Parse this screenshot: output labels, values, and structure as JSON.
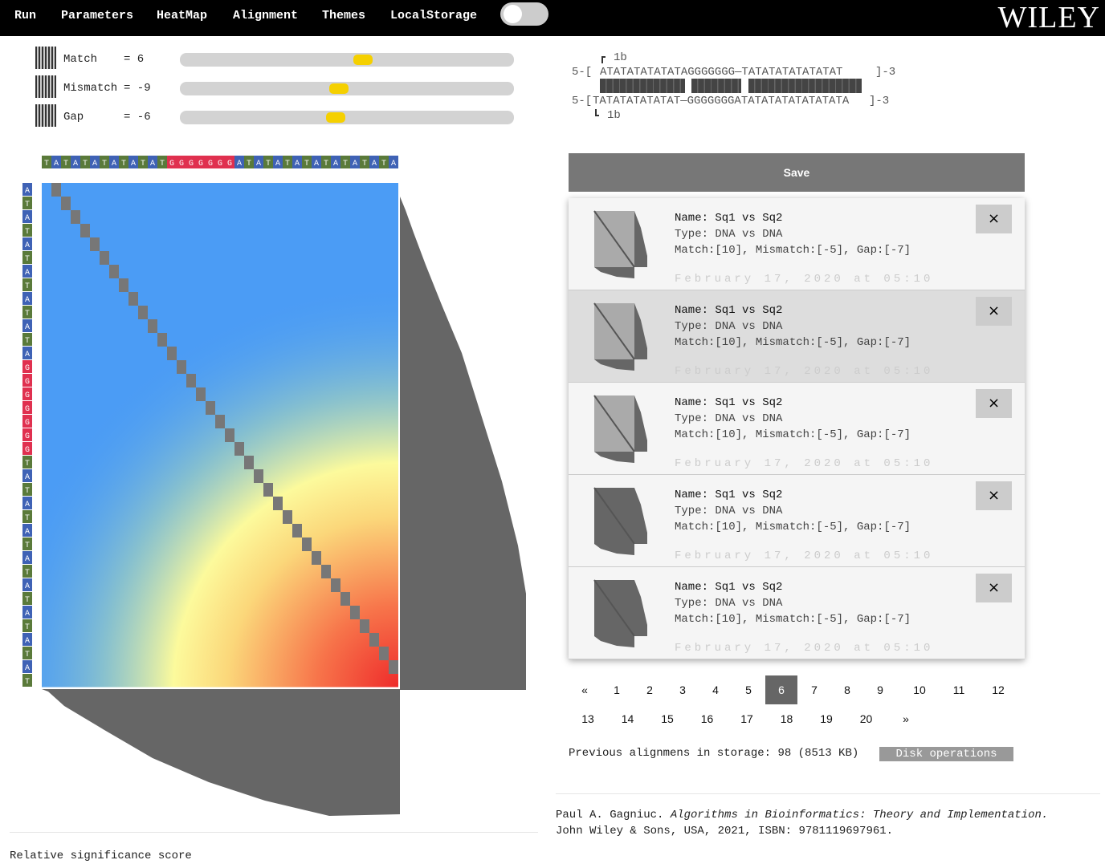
{
  "nav": {
    "items": [
      "Run",
      "Parameters",
      "HeatMap",
      "Alignment",
      "Themes",
      "LocalStorage"
    ],
    "logo": "WILEY"
  },
  "parameters": [
    {
      "label": "Match",
      "value": "= 6"
    },
    {
      "label": "Mismatch",
      "value": "= -9"
    },
    {
      "label": "Gap",
      "value": "= -6"
    }
  ],
  "heatmap": {
    "top_sequence": [
      "T",
      "A",
      "T",
      "A",
      "T",
      "A",
      "T",
      "A",
      "T",
      "A",
      "T",
      "A",
      "T",
      "G",
      "G",
      "G",
      "G",
      "G",
      "G",
      "G",
      "A",
      "T",
      "A",
      "T",
      "A",
      "T",
      "A",
      "T",
      "A",
      "T",
      "A",
      "T",
      "A",
      "T",
      "A",
      "T",
      "A"
    ],
    "left_sequence": [
      "A",
      "T",
      "A",
      "T",
      "A",
      "T",
      "A",
      "T",
      "A",
      "T",
      "A",
      "T",
      "A",
      "G",
      "G",
      "G",
      "G",
      "G",
      "G",
      "G",
      "T",
      "A",
      "T",
      "A",
      "T",
      "A",
      "T",
      "A",
      "T",
      "A",
      "T",
      "A",
      "T",
      "A",
      "T",
      "A",
      "T"
    ],
    "caption": "Relative significance score"
  },
  "alignment": {
    "top": {
      "position": "1b",
      "prefix": "5-[",
      "sequence": "ATATATATATATAGGGGGGG—TATATATATATATAT",
      "suffix": "]-3"
    },
    "bottom": {
      "position": "1b",
      "prefix": "5-[",
      "sequence": "TATATATATATAT—GGGGGGGATATATATATATATATA",
      "suffix": "]-3"
    }
  },
  "save_button": "Save",
  "saved": [
    {
      "name": "Name: Sq1 vs Sq2",
      "type": "Type: DNA vs DNA",
      "parameters": "Match:[10], Mismatch:[-5], Gap:[-7]",
      "date": "February 17, 2020 at 05:10",
      "close": "×"
    },
    {
      "name": "Name: Sq1 vs Sq2",
      "type": "Type: DNA vs DNA",
      "parameters": "Match:[10], Mismatch:[-5], Gap:[-7]",
      "date": "February 17, 2020 at 05:10",
      "close": "×"
    },
    {
      "name": "Name: Sq1 vs Sq2",
      "type": "Type: DNA vs DNA",
      "parameters": "Match:[10], Mismatch:[-5], Gap:[-7]",
      "date": "February 17, 2020 at 05:10",
      "close": "×"
    },
    {
      "name": "Name: Sq1 vs Sq2",
      "type": "Type: DNA vs DNA",
      "parameters": "Match:[10], Mismatch:[-5], Gap:[-7]",
      "date": "February 17, 2020 at 05:10",
      "close": "×"
    },
    {
      "name": "Name: Sq1 vs Sq2",
      "type": "Type: DNA vs DNA",
      "parameters": "Match:[10], Mismatch:[-5], Gap:[-7]",
      "date": "February 17, 2020 at 05:10",
      "close": "×"
    }
  ],
  "pagination": {
    "items": [
      "«",
      "1",
      "2",
      "3",
      "4",
      "5",
      "6",
      "7",
      "8",
      "9",
      "10",
      "11",
      "12",
      "13",
      "14",
      "15",
      "16",
      "17",
      "18",
      "19",
      "20",
      "»"
    ],
    "active_index": 6
  },
  "storage": {
    "summary": "Previous alignmens in storage: 98 (8513 KB)",
    "button": "Disk operations"
  },
  "citation": {
    "author": "Paul A. Gagniuc.",
    "title": "Algorithms in Bioinformatics: Theory and Implementation.",
    "publisher": "John Wiley & Sons, USA, 2021, ISBN: 9781119697961."
  }
}
